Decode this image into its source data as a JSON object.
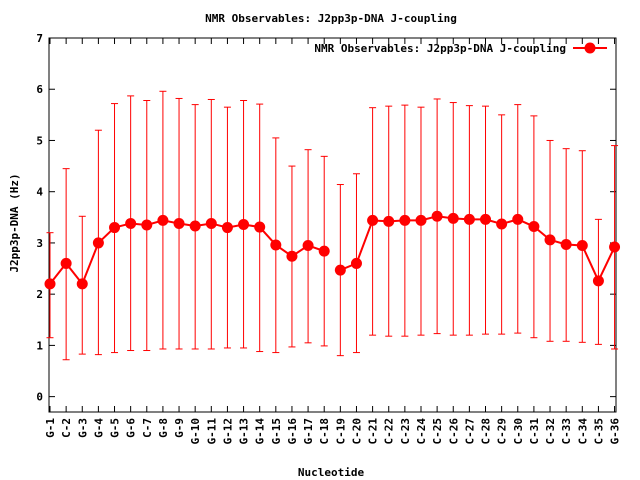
{
  "chart_data": {
    "type": "line",
    "title": "NMR Observables: J2pp3p-DNA J-coupling",
    "xlabel": "Nucleotide",
    "ylabel": "J2pp3p-DNA (Hz)",
    "ylim": [
      -0.3,
      7
    ],
    "yticks": [
      0,
      1,
      2,
      3,
      4,
      5,
      6,
      7
    ],
    "grid": false,
    "legend_position": "top-right",
    "categories": [
      "G-1",
      "C-2",
      "G-3",
      "G-4",
      "G-5",
      "G-6",
      "C-7",
      "G-8",
      "G-9",
      "G-10",
      "G-11",
      "G-12",
      "G-13",
      "G-14",
      "G-15",
      "G-16",
      "G-17",
      "C-18",
      "C-19",
      "C-20",
      "C-21",
      "C-22",
      "C-23",
      "C-24",
      "C-25",
      "C-26",
      "C-27",
      "C-28",
      "C-29",
      "C-30",
      "C-31",
      "C-32",
      "C-33",
      "C-34",
      "C-35",
      "G-36"
    ],
    "series": [
      {
        "name": "NMR Observables: J2pp3p-DNA J-coupling",
        "color": "#ff0000",
        "values": [
          2.2,
          2.6,
          2.2,
          3.0,
          3.3,
          3.38,
          3.35,
          3.44,
          3.38,
          3.33,
          3.38,
          3.3,
          3.36,
          3.31,
          2.96,
          2.74,
          2.95,
          2.84,
          2.47,
          2.6,
          3.44,
          3.42,
          3.44,
          3.44,
          3.52,
          3.48,
          3.46,
          3.46,
          3.37,
          3.46,
          3.32,
          3.06,
          2.97,
          2.95,
          2.26,
          2.92
        ],
        "err_low": [
          1.15,
          0.72,
          0.83,
          0.82,
          0.86,
          0.9,
          0.9,
          0.93,
          0.93,
          0.93,
          0.93,
          0.95,
          0.95,
          0.88,
          0.86,
          0.97,
          1.05,
          0.99,
          0.8,
          0.86,
          1.2,
          1.18,
          1.18,
          1.2,
          1.23,
          1.2,
          1.2,
          1.22,
          1.22,
          1.24,
          1.15,
          1.08,
          1.08,
          1.06,
          1.02,
          0.93
        ],
        "err_high": [
          3.2,
          4.45,
          3.52,
          5.2,
          5.72,
          5.87,
          5.78,
          5.96,
          5.82,
          5.7,
          5.8,
          5.65,
          5.78,
          5.71,
          5.05,
          4.5,
          4.82,
          4.69,
          4.14,
          4.35,
          5.64,
          5.67,
          5.69,
          5.65,
          5.81,
          5.74,
          5.68,
          5.67,
          5.5,
          5.7,
          5.48,
          5.0,
          4.84,
          4.8,
          3.46,
          4.9
        ]
      }
    ],
    "gap_after": "C-18"
  }
}
